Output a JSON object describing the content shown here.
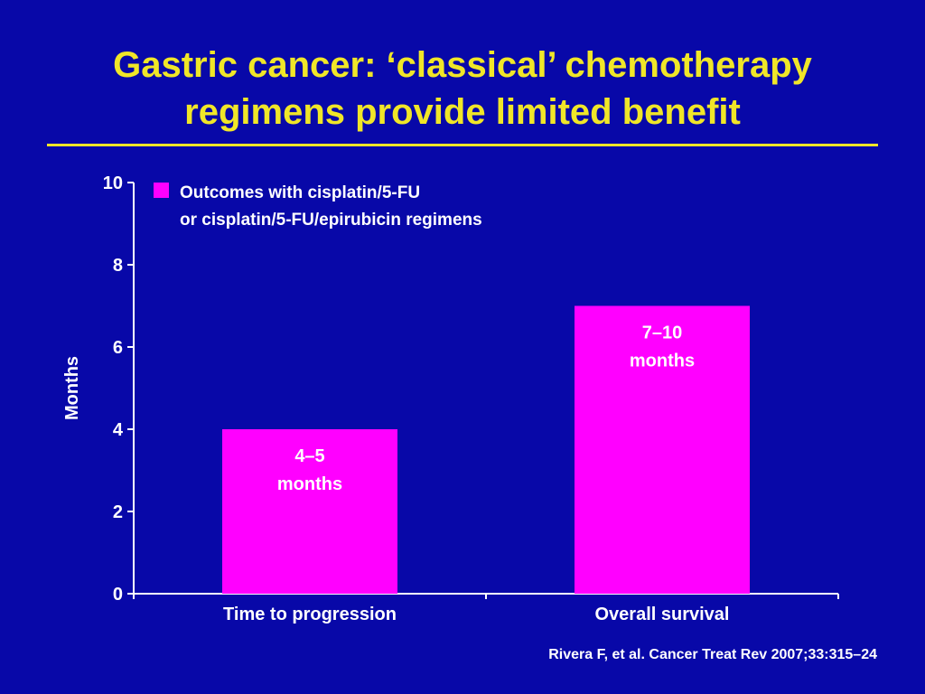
{
  "slide": {
    "title_line1": "Gastric cancer: ‘classical’ chemotherapy",
    "title_line2": "regimens provide limited benefit",
    "citation": "Rivera F, et al. Cancer Treat Rev 2007;33:315–24"
  },
  "colors": {
    "background": "#0808a8",
    "title": "#f0e628",
    "bar": "#ff00ff",
    "text": "#ffffff"
  },
  "chart_data": {
    "type": "bar",
    "categories": [
      "Time to progression",
      "Overall survival"
    ],
    "series": [
      {
        "name": "Outcomes with cisplatin/5-FU or cisplatin/5-FU/epirubicin regimens",
        "values": [
          4,
          7
        ]
      }
    ],
    "data_labels": [
      [
        "4–5",
        "months"
      ],
      [
        "7–10",
        "months"
      ]
    ],
    "legend_lines": [
      "Outcomes with cisplatin/5-FU",
      "or cisplatin/5-FU/epirubicin regimens"
    ],
    "legend_position": "top-left",
    "ylabel": "Months",
    "xlabel": "",
    "ylim": [
      0,
      10
    ],
    "yticks": [
      0,
      2,
      4,
      6,
      8,
      10
    ],
    "grid": false
  }
}
